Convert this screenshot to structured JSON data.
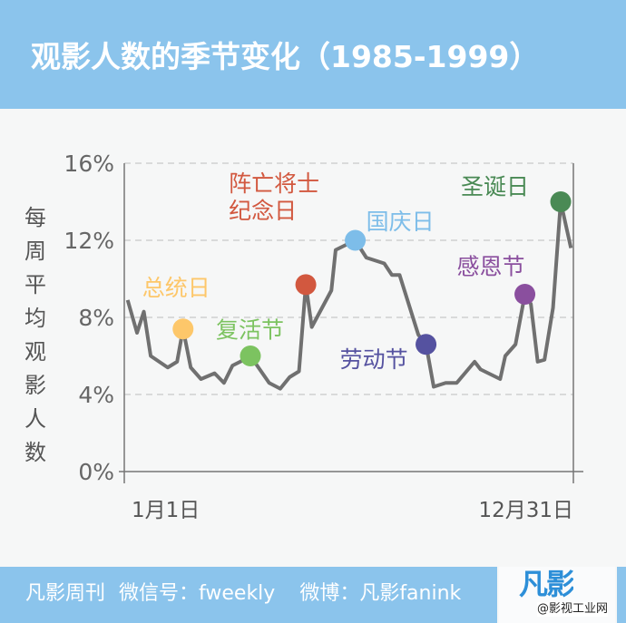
{
  "header": {
    "title": "观影人数的季节变化（1985-1999）"
  },
  "footer": {
    "brand": "凡影周刊",
    "wechat": "微信号：fweekly",
    "weibo": "微博：凡影fanink",
    "logo": "凡影",
    "watermark": "@影视工业网"
  },
  "chart_data": {
    "type": "line",
    "title": "观影人数的季节变化（1985-1999）",
    "ylabel": "每周平均观影人数",
    "ylabel_chars": [
      "每",
      "周",
      "平",
      "均",
      "观",
      "影",
      "人",
      "数"
    ],
    "xlabel": "",
    "x_tick_labels": [
      "1月1日",
      "12月31日"
    ],
    "x_unit": "week of year",
    "xlim": [
      0,
      52
    ],
    "ylim": [
      0,
      16
    ],
    "y_ticks": [
      0,
      4,
      8,
      12,
      16
    ],
    "y_tick_labels": [
      "0%",
      "4%",
      "8%",
      "12%",
      "16%"
    ],
    "grid": "horizontal dashed",
    "line_color": "#707070",
    "series": [
      {
        "name": "每周平均观影人数",
        "x": [
          0,
          1.1,
          1.9,
          2.7,
          4.7,
          5.8,
          6.5,
          7.4,
          8.6,
          10.2,
          11.3,
          12.3,
          13.2,
          14.4,
          16.6,
          17.9,
          19.0,
          20.1,
          20.9,
          21.6,
          23.9,
          24.4,
          26.7,
          28.0,
          30.1,
          31.0,
          31.9,
          34.1,
          35.0,
          35.9,
          37.3,
          38.6,
          40.7,
          41.4,
          43.7,
          44.3,
          45.5,
          46.6,
          47.3,
          48.1,
          48.9,
          49.9,
          50.8,
          52
        ],
        "values": [
          8.9,
          7.2,
          8.3,
          6.0,
          5.4,
          5.7,
          7.4,
          5.4,
          4.8,
          5.1,
          4.6,
          5.5,
          5.7,
          6.0,
          4.6,
          4.3,
          4.9,
          5.2,
          9.7,
          7.5,
          9.4,
          11.5,
          12.0,
          11.1,
          10.8,
          10.2,
          10.2,
          7.1,
          6.6,
          4.4,
          4.6,
          4.6,
          5.7,
          5.3,
          4.8,
          6.0,
          6.6,
          9.2,
          8.7,
          5.7,
          5.8,
          8.5,
          14.0,
          11.6
        ]
      }
    ],
    "annotations": [
      {
        "label": "总统日",
        "x": 6.5,
        "y": 7.4,
        "color": "#fdc76a"
      },
      {
        "label": "复活节",
        "x": 14.4,
        "y": 6.0,
        "color": "#7cc360"
      },
      {
        "label": "阵亡将士\n纪念日",
        "line1": "阵亡将士",
        "line2": "纪念日",
        "x": 20.9,
        "y": 9.7,
        "color": "#d2583f"
      },
      {
        "label": "国庆日",
        "x": 26.7,
        "y": 12.0,
        "color": "#7dbde9"
      },
      {
        "label": "劳动节",
        "x": 35.0,
        "y": 6.6,
        "color": "#5552a0"
      },
      {
        "label": "感恩节",
        "x": 46.6,
        "y": 9.2,
        "color": "#8a4f9e"
      },
      {
        "label": "圣诞日",
        "x": 50.8,
        "y": 14.0,
        "color": "#4a8a55"
      }
    ]
  }
}
